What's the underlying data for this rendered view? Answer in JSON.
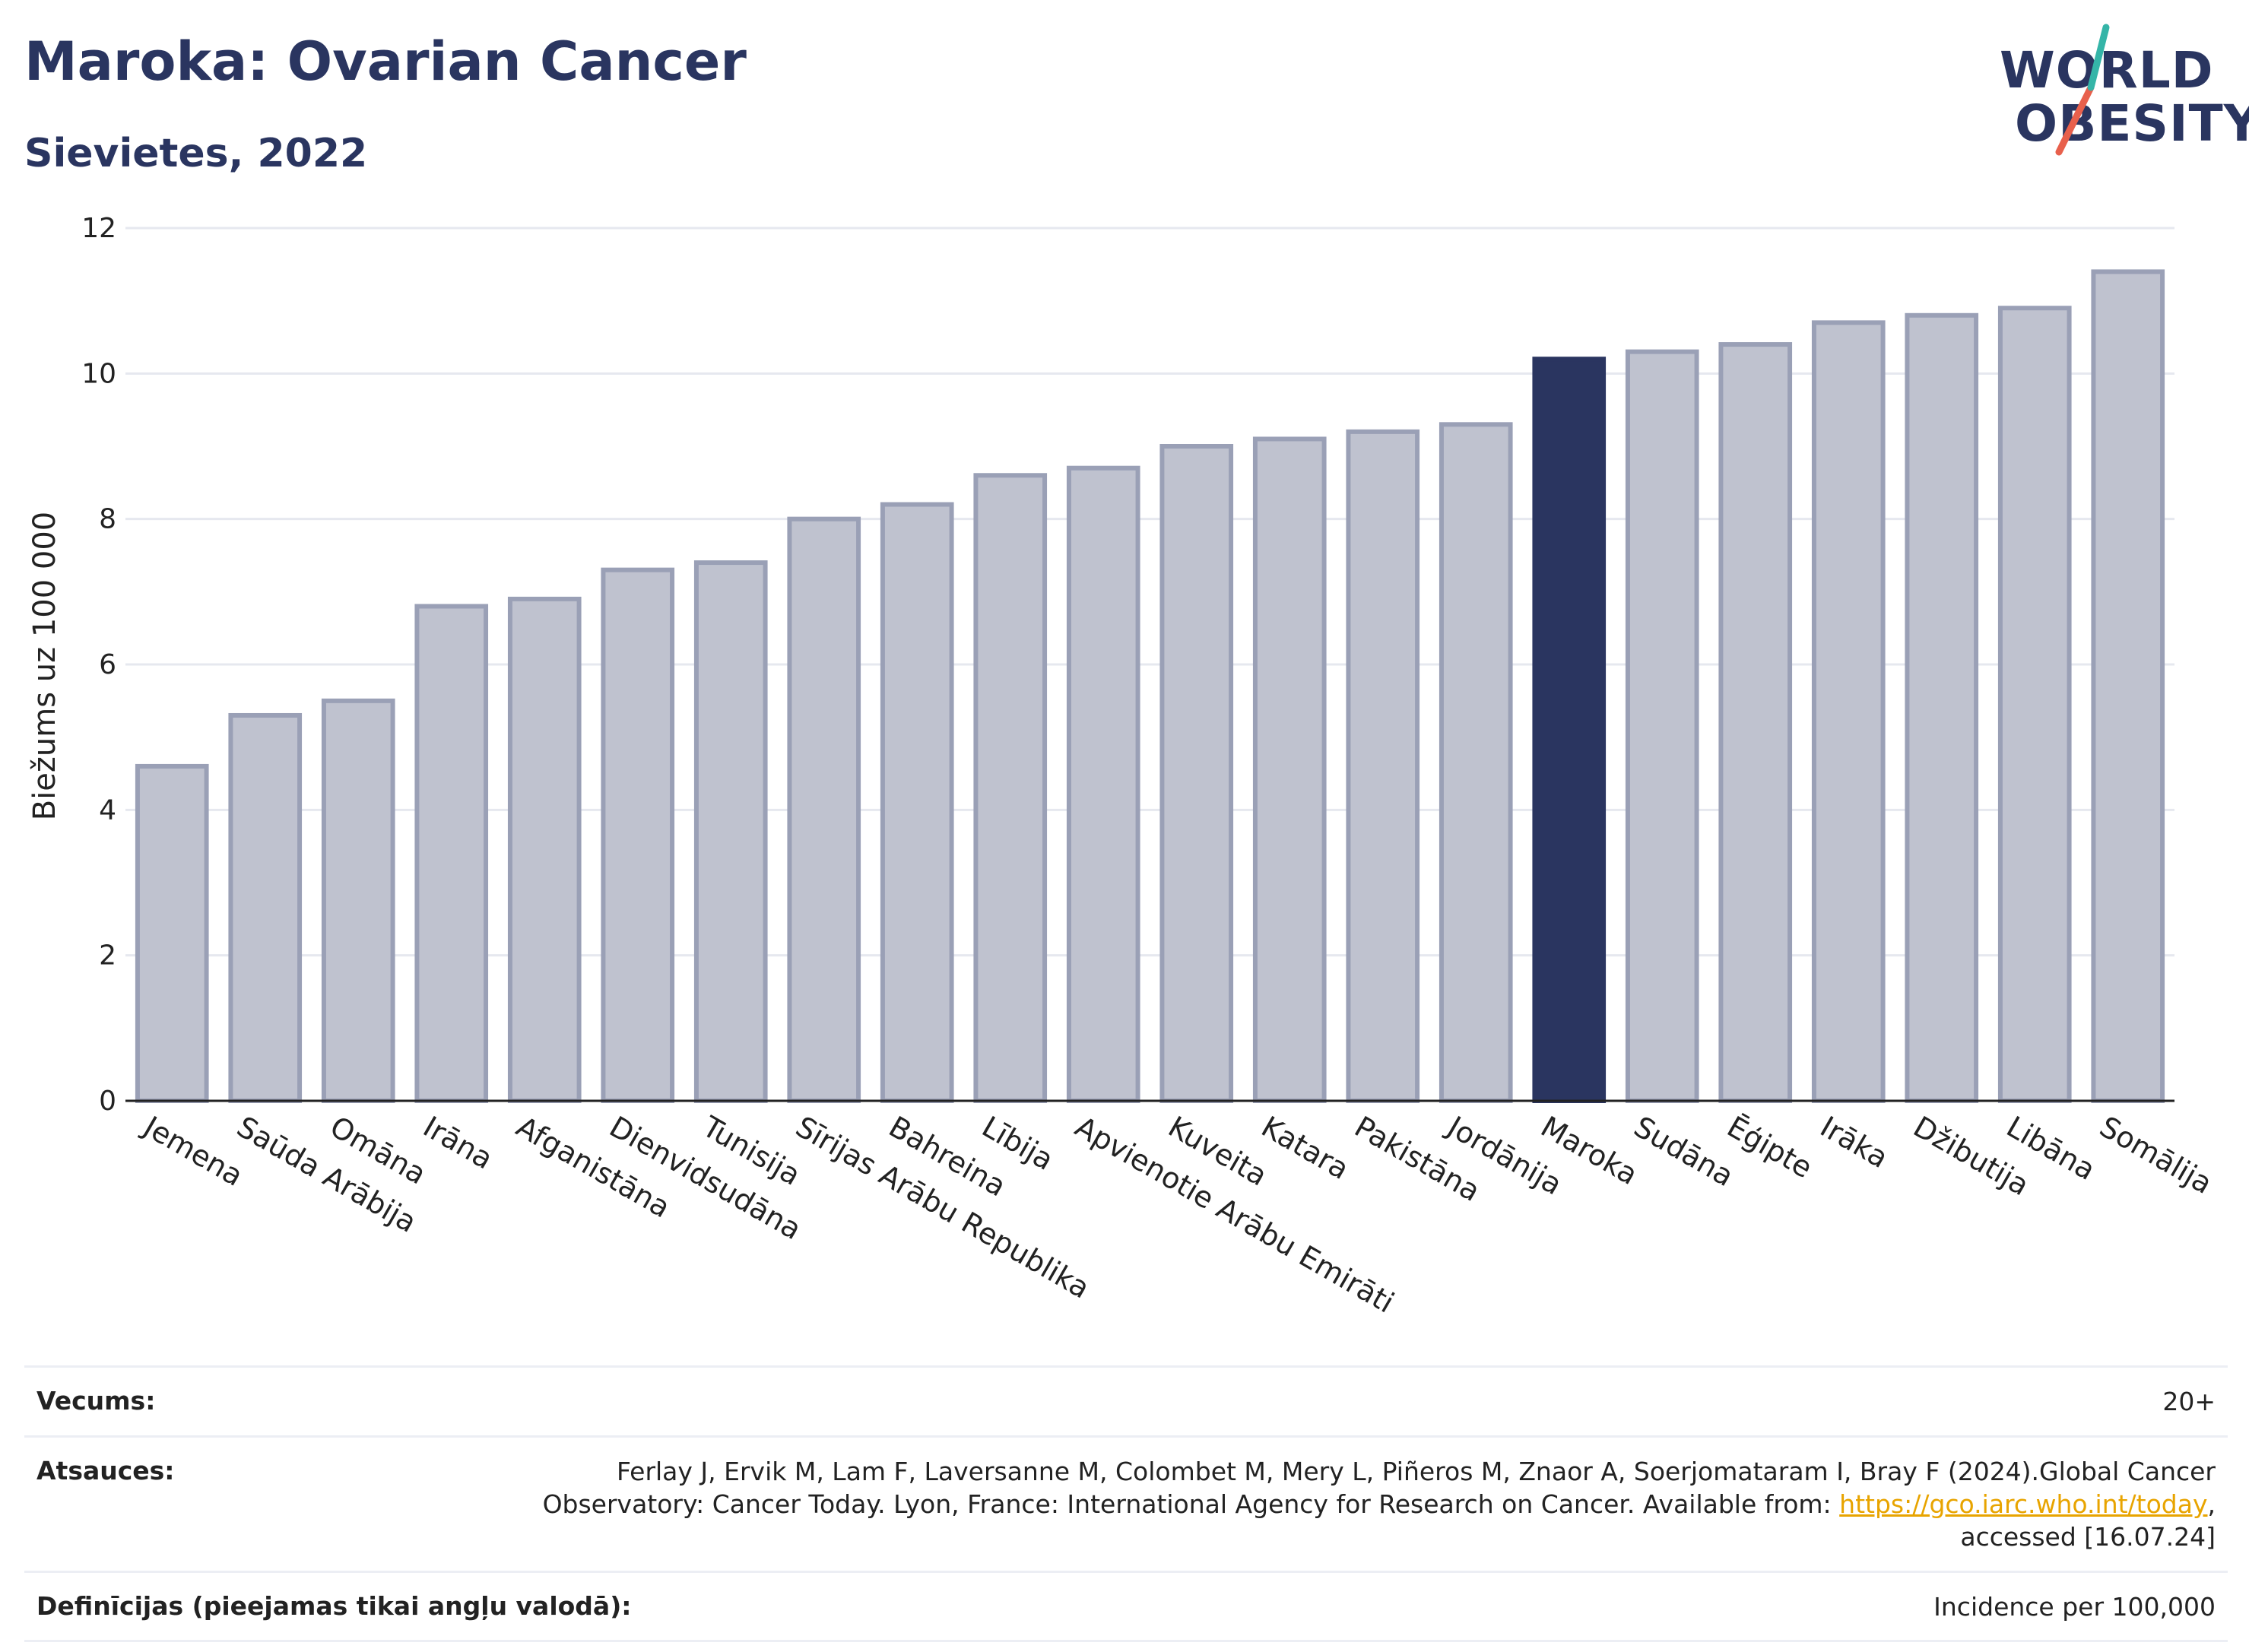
{
  "header": {
    "title": "Maroka: Ovarian Cancer",
    "subtitle": "Sievietes, 2022"
  },
  "logo": {
    "line1": "WORLD",
    "line2": "OBESITY"
  },
  "colors": {
    "highlight": "#2a3560",
    "bar": "#bfc2cf",
    "bar_border": "#9aa0b6",
    "accent_teal": "#35b5a8",
    "accent_red": "#e8604c"
  },
  "chart_data": {
    "type": "bar",
    "ylabel": "Biežums uz 100 000",
    "ylim": [
      0,
      12
    ],
    "yticks": [
      0,
      2,
      4,
      6,
      8,
      10,
      12
    ],
    "grid": true,
    "highlight": "Maroka",
    "categories": [
      "Jemena",
      "Saūda Arābija",
      "Omāna",
      "Irāna",
      "Afganistāna",
      "Dienvidsudāna",
      "Tunisija",
      "Sīrijas Arābu Republika",
      "Bahreina",
      "Lībija",
      "Apvienotie Arābu Emirāti",
      "Kuveita",
      "Katara",
      "Pakistāna",
      "Jordānija",
      "Maroka",
      "Sudāna",
      "Ēģipte",
      "Irāka",
      "Džibutija",
      "Libāna",
      "Somālija"
    ],
    "values": [
      4.6,
      5.3,
      5.5,
      6.8,
      6.9,
      7.3,
      7.4,
      8.0,
      8.2,
      8.6,
      8.7,
      9.0,
      9.1,
      9.2,
      9.3,
      10.2,
      10.3,
      10.4,
      10.7,
      10.8,
      10.9,
      11.4
    ]
  },
  "footer": {
    "age_label": "Vecums:",
    "age_value": "20+",
    "refs_label": "Atsauces:",
    "refs_text_1": "Ferlay J, Ervik M, Lam F, Laversanne M, Colombet M, Mery L, Piñeros M, Znaor A, Soerjomataram I, Bray F (2024).Global Cancer Observatory: Cancer Today. Lyon, France: International Agency for Research on Cancer. Available from: ",
    "refs_link": "https://gco.iarc.who.int/today",
    "refs_text_2": ", accessed [16.07.24]",
    "def_label": "Definīcijas (pieejamas tikai angļu valodā):",
    "def_value": "Incidence per 100,000"
  }
}
